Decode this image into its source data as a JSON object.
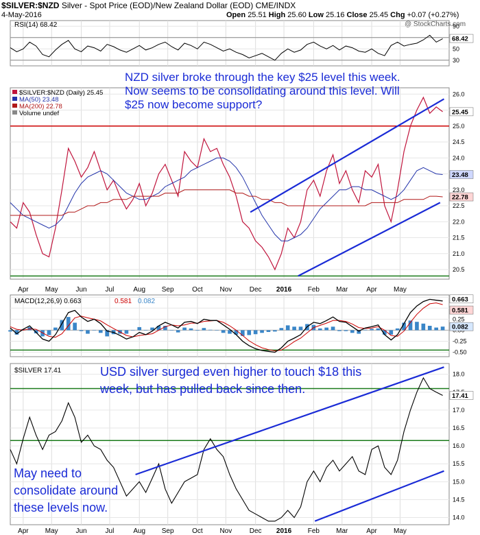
{
  "header": {
    "ticker": "$SILVER:$NZD",
    "description": "Silver - Spot Price (EOD)/New Zealand Dollar (EOD)",
    "exchange": "CME/INDX",
    "date": "4-May-2016",
    "open_label": "Open",
    "open": "25.51",
    "high_label": "High",
    "high": "25.60",
    "low_label": "Low",
    "low": "25.16",
    "close_label": "Close",
    "close": "25.45",
    "chg_label": "Chg",
    "chg": "+0.07 (+0.27%)",
    "watermark": "@ StockCharts.com"
  },
  "annotations": {
    "nzd_note": "NZD silver broke through the key $25 level this week. Now seems to be consolidating around this level. Will $25 now become support?",
    "usd_note": "USD silver surged even higher to touch $18 this week, but has pulled back since then.",
    "bottom_note": "May need to consolidate around these levels now."
  },
  "colors": {
    "price": "#c0143c",
    "ma50": "#2233aa",
    "ma200": "#b01818",
    "trend": "#1a2bd6",
    "support_red": "#cc0000",
    "support_green": "#1a7a1a",
    "macd": "#000000",
    "signal": "#cc0000",
    "histogram": "#3a86c8",
    "rsi": "#000000"
  },
  "chart_data": [
    {
      "type": "line",
      "panel": "RSI",
      "title": "RSI(14) 68.42",
      "label_text": "RSI(14) 68.42",
      "ylim": [
        20,
        100
      ],
      "y_ticks": [
        90,
        70,
        50,
        30
      ],
      "levels": [
        70,
        30
      ],
      "last_value": 68.42,
      "last_value_label": "68.42",
      "x": [
        0,
        5,
        10,
        15,
        20,
        25,
        30,
        35,
        40,
        45,
        50,
        55,
        60,
        65,
        70,
        75,
        80,
        85,
        90,
        95,
        100,
        105,
        110,
        115,
        120,
        125,
        130,
        135,
        140,
        145,
        150,
        155,
        160,
        165,
        170,
        175,
        180,
        185,
        190,
        195,
        200,
        205,
        210,
        215,
        220,
        225,
        230,
        235,
        240,
        245,
        250,
        255,
        260,
        265,
        270,
        275,
        280,
        285,
        290,
        295,
        300,
        305,
        310,
        315,
        320,
        325,
        330,
        335
      ],
      "values": [
        52,
        45,
        50,
        62,
        55,
        40,
        36,
        48,
        58,
        65,
        50,
        45,
        55,
        52,
        46,
        58,
        54,
        48,
        44,
        50,
        56,
        48,
        52,
        58,
        62,
        54,
        48,
        60,
        56,
        50,
        62,
        58,
        52,
        46,
        50,
        44,
        40,
        34,
        38,
        42,
        36,
        30,
        42,
        50,
        44,
        48,
        58,
        62,
        55,
        50,
        56,
        48,
        55,
        52,
        46,
        44,
        50,
        42,
        38,
        56,
        62,
        55,
        58,
        60,
        66,
        74,
        62,
        68
      ]
    },
    {
      "type": "line",
      "panel": "NZD",
      "legend": [
        "$SILVER:$NZD (Daily) 25.45",
        "MA(50) 23.48",
        "MA(200) 22.78",
        "Volume undef"
      ],
      "ylim": [
        20.2,
        26.2
      ],
      "y_ticks": [
        "26.0",
        "25.5",
        "25.0",
        "24.5",
        "24.0",
        "23.5",
        "23.0",
        "22.5",
        "22.0",
        "21.5",
        "21.0",
        "20.5"
      ],
      "price_tag": "25.45",
      "ma50_tag": "23.48",
      "ma200_tag": "22.78",
      "support_level": 25.0,
      "low_level": 20.3,
      "x": [
        0,
        5,
        10,
        15,
        20,
        25,
        30,
        35,
        40,
        45,
        50,
        55,
        60,
        65,
        70,
        75,
        80,
        85,
        90,
        95,
        100,
        105,
        110,
        115,
        120,
        125,
        130,
        135,
        140,
        145,
        150,
        155,
        160,
        165,
        170,
        175,
        180,
        185,
        190,
        195,
        200,
        205,
        210,
        215,
        220,
        225,
        230,
        235,
        240,
        245,
        250,
        255,
        260,
        265,
        270,
        275,
        280,
        285,
        290,
        295,
        300,
        305,
        310,
        315,
        320,
        325,
        330,
        335
      ],
      "series": [
        {
          "name": "$SILVER:$NZD (Daily) 25.45",
          "values": [
            22.0,
            21.8,
            22.6,
            22.3,
            21.6,
            21.0,
            20.9,
            21.8,
            23.0,
            24.3,
            23.9,
            23.4,
            23.7,
            24.2,
            23.6,
            23.0,
            23.3,
            22.8,
            22.4,
            22.7,
            23.2,
            22.5,
            22.9,
            23.5,
            23.8,
            23.3,
            22.8,
            24.2,
            23.9,
            23.7,
            24.6,
            24.2,
            24.3,
            23.8,
            23.4,
            22.8,
            22.0,
            21.8,
            21.4,
            21.2,
            20.9,
            20.5,
            21.0,
            21.8,
            21.5,
            22.0,
            23.0,
            23.3,
            22.8,
            23.6,
            24.1,
            23.2,
            23.6,
            23.0,
            22.6,
            23.6,
            23.4,
            23.8,
            22.5,
            22.0,
            23.0,
            24.2,
            25.0,
            25.5,
            25.9,
            25.4,
            25.6,
            25.45
          ]
        },
        {
          "name": "MA(50) 23.48",
          "values": [
            22.6,
            22.4,
            22.2,
            22.1,
            22.0,
            21.9,
            21.8,
            21.9,
            22.1,
            22.5,
            22.9,
            23.2,
            23.4,
            23.5,
            23.6,
            23.5,
            23.3,
            23.1,
            22.9,
            22.8,
            22.7,
            22.7,
            22.8,
            22.9,
            23.1,
            23.2,
            23.3,
            23.4,
            23.6,
            23.7,
            23.8,
            23.9,
            24.0,
            24.0,
            23.9,
            23.7,
            23.4,
            23.0,
            22.6,
            22.2,
            21.9,
            21.6,
            21.4,
            21.4,
            21.5,
            21.6,
            21.8,
            22.1,
            22.4,
            22.6,
            22.8,
            23.0,
            23.0,
            23.1,
            23.1,
            23.0,
            23.0,
            22.9,
            22.8,
            22.7,
            22.8,
            23.0,
            23.3,
            23.6,
            23.7,
            23.6,
            23.5,
            23.48
          ]
        },
        {
          "name": "MA(200) 22.78",
          "values": [
            22.2,
            22.2,
            22.2,
            22.2,
            22.2,
            22.2,
            22.2,
            22.2,
            22.2,
            22.3,
            22.3,
            22.4,
            22.5,
            22.5,
            22.6,
            22.6,
            22.7,
            22.7,
            22.7,
            22.8,
            22.8,
            22.8,
            22.8,
            22.8,
            22.9,
            22.9,
            22.9,
            23.0,
            23.0,
            23.0,
            23.0,
            23.0,
            23.0,
            23.0,
            23.0,
            22.9,
            22.9,
            22.8,
            22.8,
            22.7,
            22.7,
            22.6,
            22.6,
            22.5,
            22.5,
            22.5,
            22.5,
            22.5,
            22.5,
            22.5,
            22.5,
            22.5,
            22.5,
            22.5,
            22.5,
            22.5,
            22.6,
            22.6,
            22.6,
            22.6,
            22.6,
            22.7,
            22.7,
            22.7,
            22.7,
            22.8,
            22.8,
            22.78
          ]
        }
      ],
      "trendlines": [
        {
          "x": [
            186,
            336
          ],
          "y": [
            22.3,
            25.85
          ]
        },
        {
          "x": [
            223,
            333
          ],
          "y": [
            20.3,
            22.6
          ]
        }
      ]
    },
    {
      "type": "line",
      "panel": "MACD",
      "legend": [
        "MACD(12,26,9) 0.663",
        "0.581",
        "0.082"
      ],
      "ylim": [
        -0.6,
        0.8
      ],
      "y_ticks": [
        "0.75",
        "0.50",
        "0.25",
        "0.00",
        "-0.25",
        "-0.50"
      ],
      "tags": [
        "0.663",
        "0.581",
        "0.082"
      ],
      "levels": [
        -0.45
      ],
      "x": [
        0,
        5,
        10,
        15,
        20,
        25,
        30,
        35,
        40,
        45,
        50,
        55,
        60,
        65,
        70,
        75,
        80,
        85,
        90,
        95,
        100,
        105,
        110,
        115,
        120,
        125,
        130,
        135,
        140,
        145,
        150,
        155,
        160,
        165,
        170,
        175,
        180,
        185,
        190,
        195,
        200,
        205,
        210,
        215,
        220,
        225,
        230,
        235,
        240,
        245,
        250,
        255,
        260,
        265,
        270,
        275,
        280,
        285,
        290,
        295,
        300,
        305,
        310,
        315,
        320,
        325,
        330,
        335
      ],
      "series": [
        {
          "name": "MACD(12,26,9) 0.663",
          "values": [
            0.05,
            -0.08,
            0.02,
            0.1,
            -0.05,
            -0.2,
            -0.25,
            -0.1,
            0.15,
            0.4,
            0.45,
            0.3,
            0.2,
            0.25,
            0.15,
            -0.02,
            -0.05,
            -0.12,
            -0.2,
            -0.15,
            -0.05,
            -0.1,
            -0.02,
            0.1,
            0.18,
            0.12,
            0.05,
            0.18,
            0.2,
            0.15,
            0.25,
            0.22,
            0.22,
            0.12,
            0.02,
            -0.1,
            -0.25,
            -0.35,
            -0.42,
            -0.46,
            -0.48,
            -0.5,
            -0.4,
            -0.25,
            -0.18,
            -0.1,
            0.08,
            0.18,
            0.15,
            0.22,
            0.3,
            0.2,
            0.18,
            0.08,
            -0.02,
            0.05,
            0.08,
            0.12,
            -0.1,
            -0.22,
            -0.1,
            0.15,
            0.4,
            0.55,
            0.65,
            0.7,
            0.68,
            0.663
          ]
        },
        {
          "name": "0.581",
          "values": [
            0.08,
            0.02,
            0.0,
            0.03,
            0.02,
            -0.06,
            -0.14,
            -0.16,
            -0.08,
            0.1,
            0.28,
            0.32,
            0.28,
            0.25,
            0.21,
            0.12,
            0.04,
            -0.04,
            -0.12,
            -0.15,
            -0.12,
            -0.1,
            -0.08,
            0.0,
            0.08,
            0.12,
            0.1,
            0.12,
            0.16,
            0.16,
            0.2,
            0.21,
            0.22,
            0.18,
            0.1,
            0.0,
            -0.12,
            -0.24,
            -0.33,
            -0.4,
            -0.44,
            -0.47,
            -0.45,
            -0.36,
            -0.26,
            -0.18,
            -0.06,
            0.06,
            0.11,
            0.16,
            0.22,
            0.22,
            0.2,
            0.14,
            0.06,
            0.04,
            0.05,
            0.08,
            0.0,
            -0.12,
            -0.14,
            -0.02,
            0.18,
            0.36,
            0.5,
            0.6,
            0.62,
            0.581
          ]
        }
      ],
      "histogram": [
        -0.03,
        -0.1,
        0.02,
        0.07,
        -0.07,
        -0.14,
        -0.11,
        0.06,
        0.23,
        0.3,
        0.17,
        -0.02,
        -0.08,
        0.0,
        -0.06,
        -0.14,
        -0.09,
        -0.08,
        -0.08,
        0.0,
        0.07,
        0.0,
        0.06,
        0.1,
        0.1,
        0.0,
        -0.05,
        0.06,
        0.04,
        -0.01,
        0.05,
        0.01,
        0.0,
        -0.06,
        -0.08,
        -0.1,
        -0.13,
        -0.11,
        -0.09,
        -0.06,
        -0.04,
        -0.03,
        0.05,
        0.11,
        0.08,
        0.08,
        0.14,
        0.12,
        0.04,
        0.06,
        0.08,
        -0.02,
        -0.02,
        -0.06,
        -0.08,
        0.01,
        0.03,
        0.04,
        -0.1,
        -0.1,
        0.04,
        0.17,
        0.22,
        0.19,
        0.15,
        0.1,
        0.06,
        0.082
      ]
    },
    {
      "type": "line",
      "panel": "USD",
      "legend": [
        "$SILVER 17.41"
      ],
      "ylim": [
        13.8,
        18.3
      ],
      "y_ticks": [
        "18.0",
        "17.5",
        "17.0",
        "16.5",
        "16.0",
        "15.5",
        "15.0",
        "14.5",
        "14.0"
      ],
      "price_tag": "17.41",
      "resistance_levels": [
        17.6,
        16.15
      ],
      "x": [
        0,
        5,
        10,
        15,
        20,
        25,
        30,
        35,
        40,
        45,
        50,
        55,
        60,
        65,
        70,
        75,
        80,
        85,
        90,
        95,
        100,
        105,
        110,
        115,
        120,
        125,
        130,
        135,
        140,
        145,
        150,
        155,
        160,
        165,
        170,
        175,
        180,
        185,
        190,
        195,
        200,
        205,
        210,
        215,
        220,
        225,
        230,
        235,
        240,
        245,
        250,
        255,
        260,
        265,
        270,
        275,
        280,
        285,
        290,
        295,
        300,
        305,
        310,
        315,
        320,
        325,
        330,
        335
      ],
      "values": [
        15.9,
        15.5,
        16.2,
        16.8,
        16.3,
        15.9,
        16.3,
        16.4,
        16.7,
        17.2,
        16.8,
        16.1,
        16.3,
        16.0,
        15.9,
        15.6,
        15.4,
        15.0,
        14.6,
        14.8,
        15.0,
        14.7,
        15.1,
        15.5,
        14.8,
        14.4,
        14.7,
        15.0,
        15.1,
        15.2,
        15.9,
        16.2,
        15.9,
        15.7,
        15.2,
        14.8,
        14.5,
        14.2,
        14.1,
        14.0,
        13.9,
        13.9,
        14.0,
        14.2,
        14.0,
        14.3,
        15.0,
        15.3,
        15.0,
        15.4,
        15.6,
        15.3,
        15.5,
        15.7,
        15.3,
        15.2,
        15.9,
        16.0,
        15.4,
        15.2,
        15.6,
        16.4,
        17.0,
        17.5,
        17.9,
        17.6,
        17.5,
        17.41
      ],
      "trendlines": [
        {
          "x": [
            97,
            336
          ],
          "y": [
            15.2,
            18.2
          ]
        },
        {
          "x": [
            236,
            336
          ],
          "y": [
            13.9,
            15.3
          ]
        }
      ]
    }
  ],
  "months": [
    {
      "label": "Apr",
      "x": 10
    },
    {
      "label": "May",
      "x": 32
    },
    {
      "label": "Jun",
      "x": 55
    },
    {
      "label": "Jul",
      "x": 77
    },
    {
      "label": "Aug",
      "x": 100
    },
    {
      "label": "Sep",
      "x": 122
    },
    {
      "label": "Oct",
      "x": 145
    },
    {
      "label": "Nov",
      "x": 167
    },
    {
      "label": "Dec",
      "x": 190
    },
    {
      "label": "2016",
      "x": 212
    },
    {
      "label": "Feb",
      "x": 235
    },
    {
      "label": "Mar",
      "x": 257
    },
    {
      "label": "Apr",
      "x": 280
    },
    {
      "label": "May",
      "x": 302
    }
  ]
}
